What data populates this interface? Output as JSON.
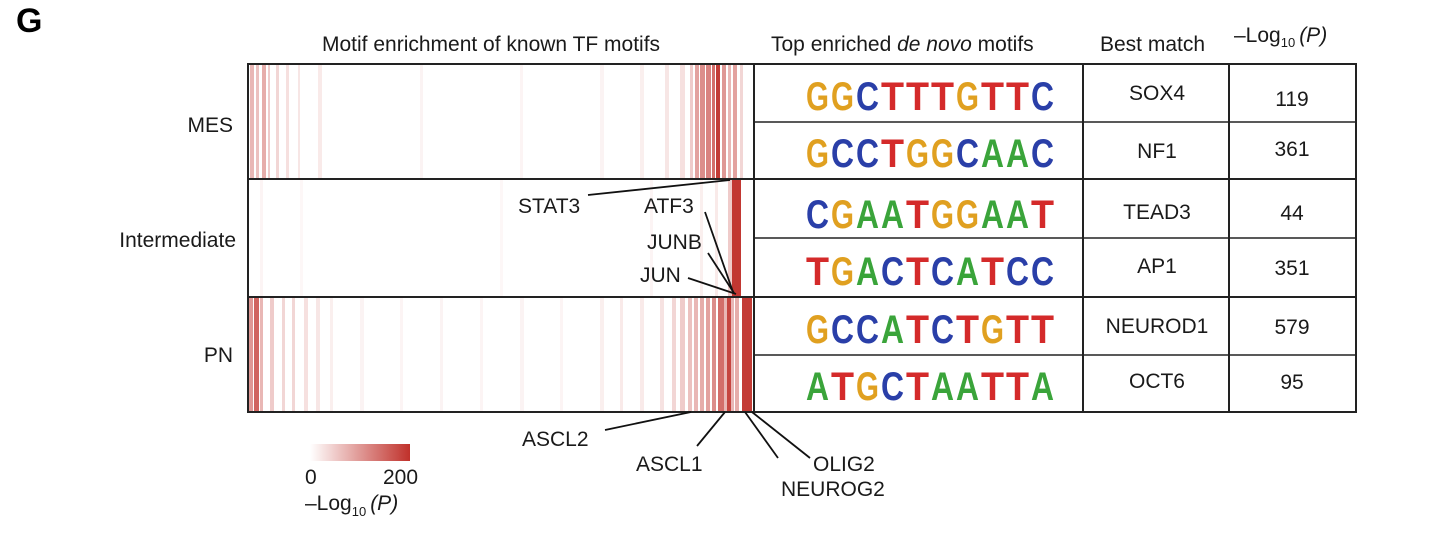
{
  "panel_letter": "G",
  "headers": {
    "known": "Motif enrichment of known TF motifs",
    "denovo_pre": "Top enriched ",
    "denovo_em": "de novo",
    "denovo_post": " motifs",
    "best_match": "Best match",
    "pval_main": "–Log",
    "pval_sub": "10",
    "pval_paren": "(P)"
  },
  "groups": [
    "MES",
    "Intermediate",
    "PN"
  ],
  "motifs": [
    {
      "group": "MES",
      "logo": "GGCTTTGTTC",
      "match": "SOX4",
      "pval": "119"
    },
    {
      "group": "MES",
      "logo": "GCCTGGCAAC",
      "match": "NF1",
      "pval": "361"
    },
    {
      "group": "Intermediate",
      "logo": "CGAATGGAAT",
      "match": "TEAD3",
      "pval": "44"
    },
    {
      "group": "Intermediate",
      "logo": "TGACTCATCC",
      "match": "AP1",
      "pval": "351"
    },
    {
      "group": "PN",
      "logo": "GCCATCTGTT",
      "match": "NEUROD1",
      "pval": "579"
    },
    {
      "group": "PN",
      "logo": "ATGCTAATTA",
      "match": "OCT6",
      "pval": "95"
    }
  ],
  "tf_labels": {
    "stat3": "STAT3",
    "atf3": "ATF3",
    "junb": "JUNB",
    "jun": "JUN",
    "ascl2": "ASCL2",
    "ascl1": "ASCL1",
    "olig2": "OLIG2",
    "neurog2": "NEUROG2"
  },
  "legend": {
    "min": "0",
    "max": "200",
    "label_main": "–Log",
    "label_sub": "10",
    "label_paren": "(P)",
    "color_low": "#ffffff",
    "color_high": "#c0312b"
  },
  "colors": {
    "A": "#3aa43a",
    "C": "#2a3fa8",
    "G": "#e0a020",
    "T": "#d42a2a"
  }
}
